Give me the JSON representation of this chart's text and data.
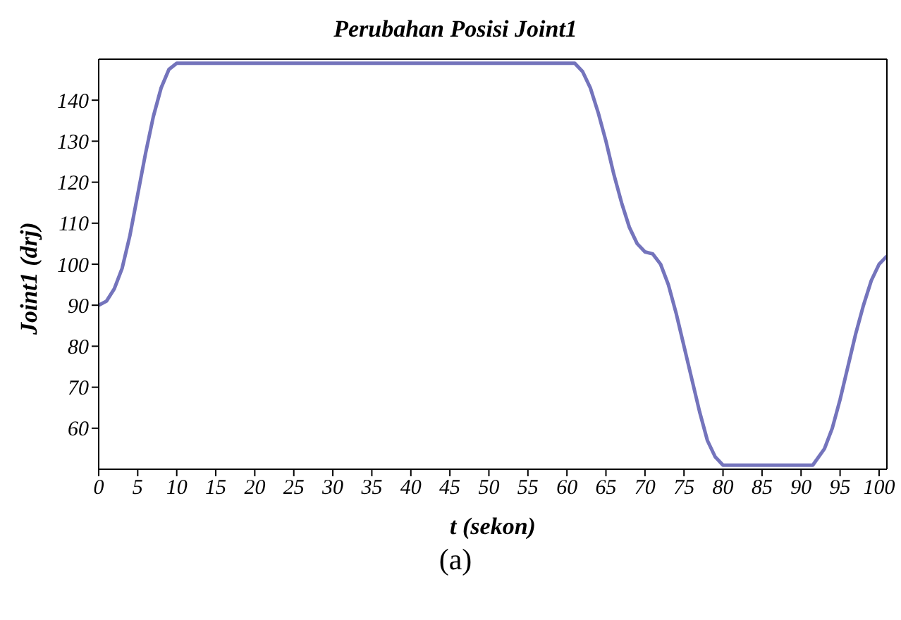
{
  "chart_data": {
    "type": "line",
    "title": "Perubahan Posisi Joint1",
    "xlabel": "t (sekon)",
    "ylabel": "Joint1 (drj)",
    "annotations": [
      "(a)"
    ],
    "x": [
      0,
      1,
      2,
      3,
      4,
      5,
      6,
      7,
      8,
      9,
      10,
      61,
      62,
      63,
      64,
      65,
      66,
      67,
      68,
      69,
      70,
      71,
      72,
      73,
      74,
      75,
      76,
      77,
      78,
      79,
      80,
      91.5,
      93,
      94,
      95,
      96,
      97,
      98,
      99,
      100,
      101
    ],
    "series": [
      {
        "color": "#7474bc",
        "values": [
          90,
          91,
          94,
          99,
          107,
          117,
          127,
          136,
          143,
          147.5,
          149,
          149,
          147,
          143,
          137,
          130,
          122,
          115,
          109,
          105,
          103,
          102.5,
          100,
          95,
          88,
          80,
          72,
          64,
          57,
          53,
          51,
          51,
          55,
          60,
          67,
          75,
          83,
          90,
          96,
          100,
          102
        ]
      }
    ],
    "xlim": [
      0,
      101
    ],
    "xticks": [
      0,
      5,
      10,
      15,
      20,
      25,
      30,
      35,
      40,
      45,
      50,
      55,
      60,
      65,
      70,
      75,
      80,
      85,
      90,
      95,
      100
    ],
    "ylim": [
      50,
      150
    ],
    "yticks": [
      60,
      70,
      80,
      90,
      100,
      110,
      120,
      130,
      140
    ],
    "grid": false,
    "legend": false,
    "marker": "none",
    "line_style": "solid"
  }
}
